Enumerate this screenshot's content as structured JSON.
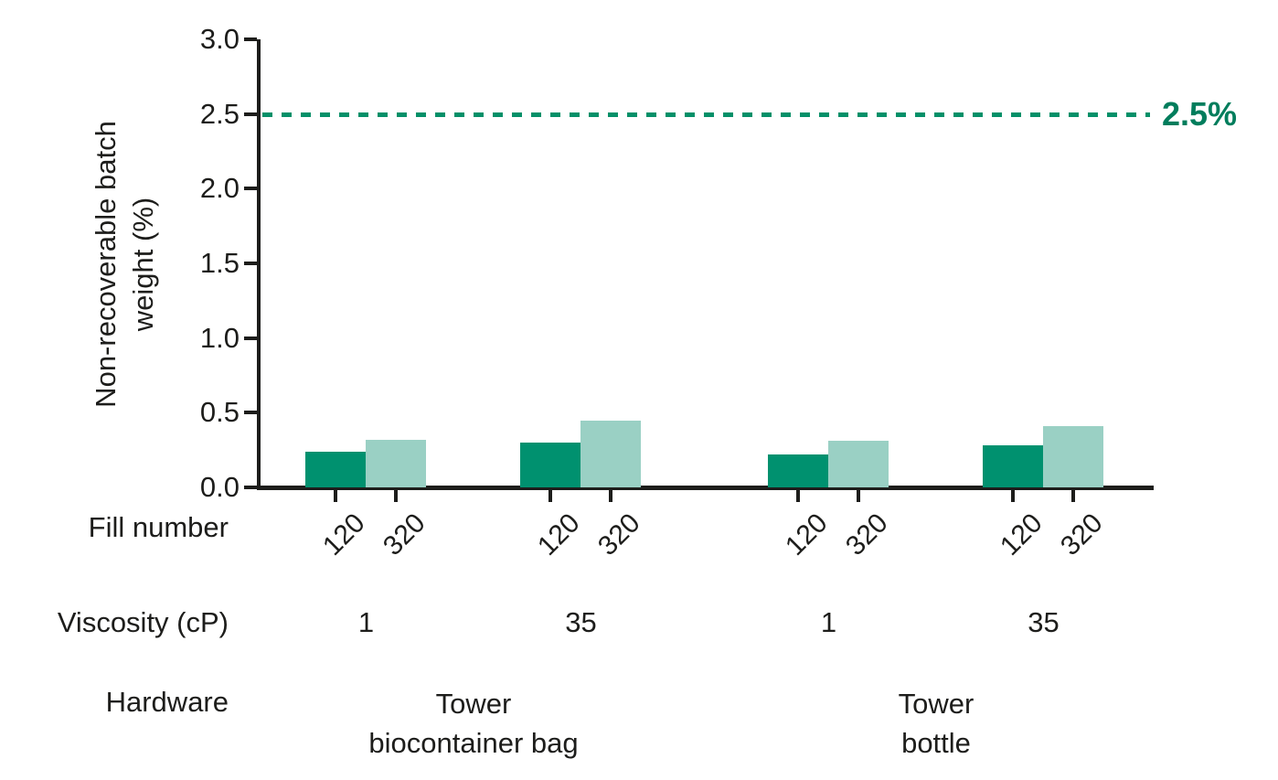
{
  "chart_data": {
    "type": "bar",
    "title": "",
    "ylabel": "Non-recoverable batch weight (%)",
    "ylabel_lines": [
      "Non-recoverable batch",
      "weight (%)"
    ],
    "ylim": [
      0,
      3.0
    ],
    "yticks": [
      "3.0",
      "2.5",
      "2.0",
      "1.5",
      "1.0",
      "0.5",
      "0.0"
    ],
    "grid": false,
    "legend": "none",
    "reference_line": {
      "value": 2.5,
      "label": "2.5%",
      "style": "dashed"
    },
    "row_headers": {
      "fill_number": "Fill number",
      "viscosity": "Viscosity (cP)",
      "hardware": "Hardware"
    },
    "groups": [
      {
        "hardware": "Tower biocontainer bag",
        "viscosity": "1",
        "bars": [
          {
            "fill_number": "120",
            "value": 0.24
          },
          {
            "fill_number": "320",
            "value": 0.32
          }
        ]
      },
      {
        "hardware": "Tower biocontainer bag",
        "viscosity": "35",
        "bars": [
          {
            "fill_number": "120",
            "value": 0.3
          },
          {
            "fill_number": "320",
            "value": 0.45
          }
        ]
      },
      {
        "hardware": "Tower bottle",
        "viscosity": "1",
        "bars": [
          {
            "fill_number": "120",
            "value": 0.22
          },
          {
            "fill_number": "320",
            "value": 0.31
          }
        ]
      },
      {
        "hardware": "Tower bottle",
        "viscosity": "35",
        "bars": [
          {
            "fill_number": "120",
            "value": 0.28
          },
          {
            "fill_number": "320",
            "value": 0.41
          }
        ]
      }
    ],
    "hardware_labels": [
      {
        "lines": [
          "Tower",
          "biocontainer bag"
        ]
      },
      {
        "lines": [
          "Tower",
          "bottle"
        ]
      }
    ],
    "colors": {
      "bar_fill_120": "#00916F",
      "bar_fill_320": "#9AD0C4",
      "reference_line": "#059069",
      "reference_label": "#007D5C",
      "axis": "#1d1d1b"
    }
  }
}
